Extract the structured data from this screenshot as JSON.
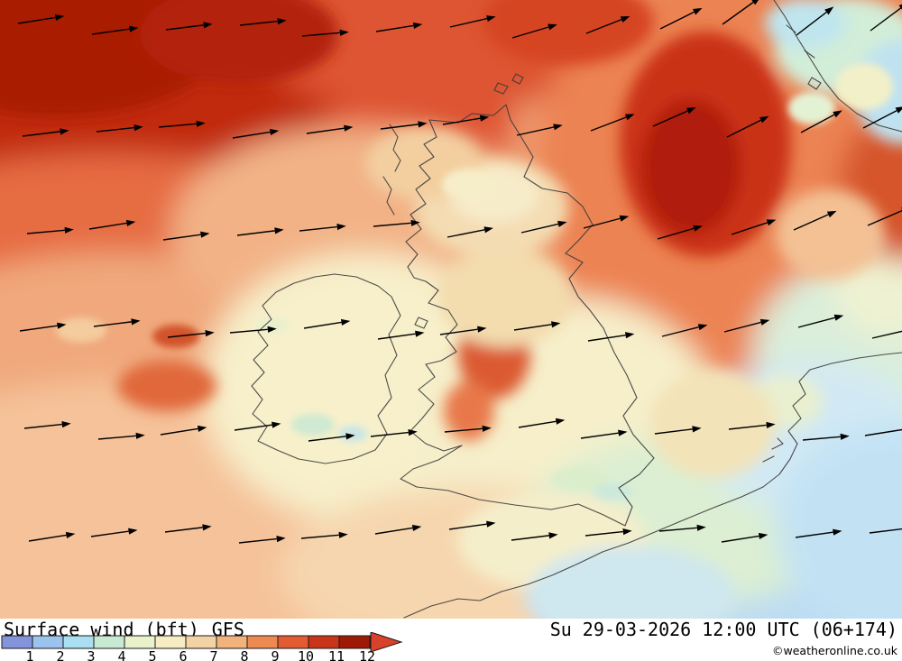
{
  "title": "Surface wind (bft)",
  "model": "GFS",
  "datetime": "Su 29-03-2026 12:00 UTC (06+174)",
  "copyright": "©weatheronline.co.uk",
  "legend": {
    "values": [
      "1",
      "2",
      "3",
      "4",
      "5",
      "6",
      "7",
      "8",
      "9",
      "10",
      "11",
      "12"
    ],
    "colors": [
      "#8494da",
      "#9cc2ee",
      "#a9dff0",
      "#c9ead2",
      "#eaf2cc",
      "#f6eec2",
      "#f3d3a4",
      "#f2b27c",
      "#ec8a52",
      "#e35b31",
      "#c93418",
      "#9e1a06"
    ],
    "arrow_color": "#d8422a"
  },
  "map": {
    "arrow_color": "#000000",
    "coast_color": "#3a3a3a"
  },
  "chart_data": {
    "type": "heatmap",
    "title": "Surface wind (bft)",
    "model": "GFS",
    "valid": "Su 29-03-2026 12:00 UTC (06+174)",
    "units": "bft",
    "scale_values": [
      1,
      2,
      3,
      4,
      5,
      6,
      7,
      8,
      9,
      10,
      11,
      12
    ],
    "legend_position": "bottom",
    "regions_read_from_colors": [
      {
        "area": "Atlantic top-left",
        "bft": "10-11"
      },
      {
        "area": "North Sea dark patch upper right",
        "bft": "10"
      },
      {
        "area": "Ireland and central England",
        "bft": "5-6"
      },
      {
        "area": "Irish Sea / Wales patch",
        "bft": "9"
      },
      {
        "area": "South-west approaches",
        "bft": "7-8"
      },
      {
        "area": "Continent bottom-right",
        "bft": "2-3"
      },
      {
        "area": "Norway top-right",
        "bft": "3-5"
      }
    ],
    "wind_direction": "westerly to south-westerly (arrows point E to NE)"
  }
}
